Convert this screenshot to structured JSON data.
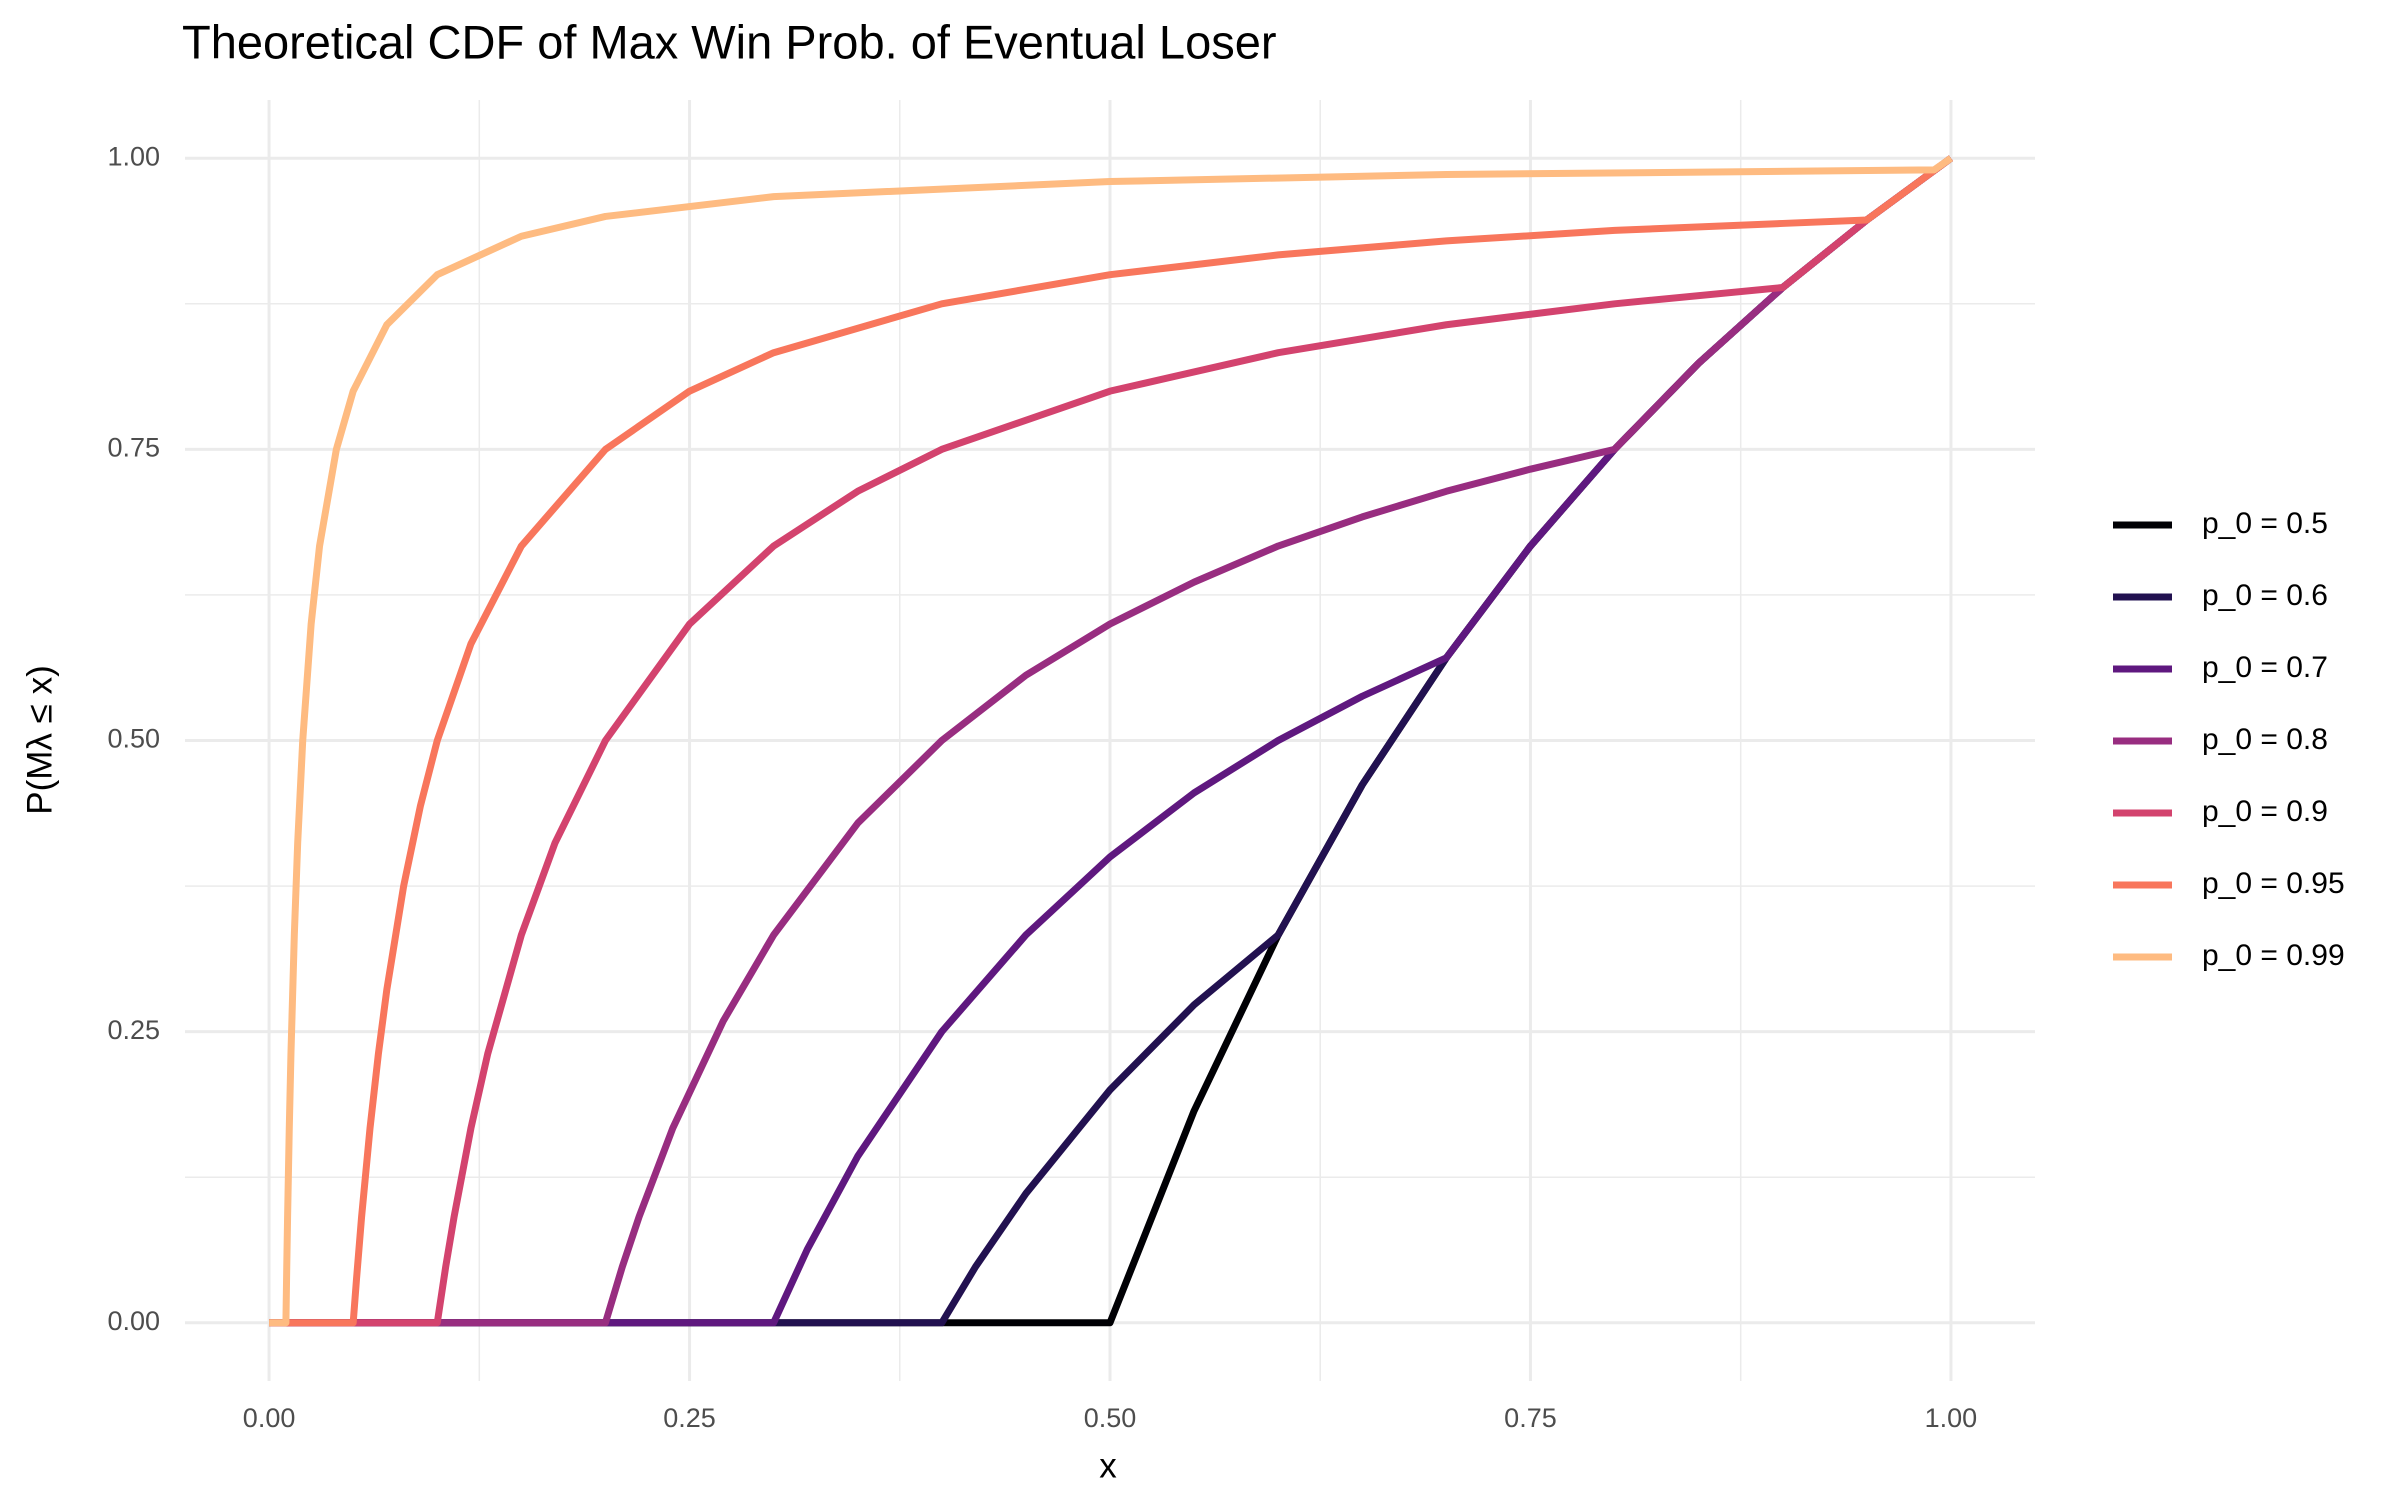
{
  "chart_data": {
    "type": "line",
    "title": "Theoretical CDF of Max Win Prob. of Eventual Loser",
    "x_label": "x",
    "y_label": "P(Mλ ≤ x)",
    "xlim": [
      -0.05,
      1.05
    ],
    "ylim": [
      -0.05,
      1.05
    ],
    "xticks": [
      {
        "value": 0,
        "label": "0.00"
      },
      {
        "value": 0.25,
        "label": "0.25"
      },
      {
        "value": 0.5,
        "label": "0.50"
      },
      {
        "value": 0.75,
        "label": "0.75"
      },
      {
        "value": 1,
        "label": "1.00"
      }
    ],
    "yticks": [
      {
        "value": 0,
        "label": "0.00"
      },
      {
        "value": 0.25,
        "label": "0.25"
      },
      {
        "value": 0.5,
        "label": "0.50"
      },
      {
        "value": 0.75,
        "label": "0.75"
      },
      {
        "value": 1,
        "label": "1.00"
      }
    ],
    "grid": true,
    "legend": "right",
    "series": [
      {
        "name": "p_0 = 0.5",
        "color": "#000004",
        "x": [
          0,
          0.5,
          0.55,
          0.6,
          0.65,
          0.7,
          0.75,
          0.8,
          0.85,
          0.9,
          0.95,
          1
        ],
        "values": [
          0,
          0,
          0.182,
          0.333,
          0.462,
          0.571,
          0.667,
          0.75,
          0.824,
          0.889,
          0.947,
          1
        ]
      },
      {
        "name": "p_0 = 0.6",
        "color": "#221150",
        "x": [
          0,
          0.4,
          0.42,
          0.45,
          0.5,
          0.55,
          0.6,
          0.65,
          0.7,
          0.75,
          0.8,
          0.85,
          0.9,
          0.95,
          1
        ],
        "values": [
          0,
          0,
          0.048,
          0.111,
          0.2,
          0.273,
          0.333,
          0.462,
          0.571,
          0.667,
          0.75,
          0.824,
          0.889,
          0.947,
          1
        ]
      },
      {
        "name": "p_0 = 0.7",
        "color": "#5f187f",
        "x": [
          0,
          0.3,
          0.32,
          0.35,
          0.4,
          0.45,
          0.5,
          0.55,
          0.6,
          0.65,
          0.7,
          0.75,
          0.8,
          0.85,
          0.9,
          0.95,
          1
        ],
        "values": [
          0,
          0,
          0.063,
          0.143,
          0.25,
          0.333,
          0.4,
          0.455,
          0.5,
          0.538,
          0.571,
          0.667,
          0.75,
          0.824,
          0.889,
          0.947,
          1
        ]
      },
      {
        "name": "p_0 = 0.8",
        "color": "#982d80",
        "x": [
          0,
          0.2,
          0.21,
          0.22,
          0.24,
          0.27,
          0.3,
          0.35,
          0.4,
          0.45,
          0.5,
          0.55,
          0.6,
          0.65,
          0.7,
          0.75,
          0.8,
          0.85,
          0.9,
          0.95,
          1
        ],
        "values": [
          0,
          0,
          0.048,
          0.091,
          0.167,
          0.259,
          0.333,
          0.429,
          0.5,
          0.556,
          0.6,
          0.636,
          0.667,
          0.692,
          0.714,
          0.733,
          0.75,
          0.824,
          0.889,
          0.947,
          1
        ]
      },
      {
        "name": "p_0 = 0.9",
        "color": "#d3436e",
        "x": [
          0,
          0.1,
          0.105,
          0.11,
          0.12,
          0.13,
          0.15,
          0.17,
          0.2,
          0.25,
          0.3,
          0.35,
          0.4,
          0.5,
          0.6,
          0.7,
          0.8,
          0.9,
          0.95,
          1
        ],
        "values": [
          0,
          0,
          0.048,
          0.091,
          0.167,
          0.231,
          0.333,
          0.412,
          0.5,
          0.6,
          0.667,
          0.714,
          0.75,
          0.8,
          0.833,
          0.857,
          0.875,
          0.889,
          0.947,
          1
        ]
      },
      {
        "name": "p_0 = 0.95",
        "color": "#f8765c",
        "x": [
          0,
          0.05,
          0.052,
          0.055,
          0.06,
          0.065,
          0.07,
          0.08,
          0.09,
          0.1,
          0.12,
          0.15,
          0.2,
          0.25,
          0.3,
          0.4,
          0.5,
          0.6,
          0.7,
          0.8,
          0.9,
          0.95,
          1
        ],
        "values": [
          0,
          0,
          0.038,
          0.091,
          0.167,
          0.231,
          0.286,
          0.375,
          0.444,
          0.5,
          0.583,
          0.667,
          0.75,
          0.8,
          0.833,
          0.875,
          0.9,
          0.917,
          0.929,
          0.938,
          0.944,
          0.947,
          1
        ]
      },
      {
        "name": "p_0 = 0.99",
        "color": "#febb81",
        "x": [
          0,
          0.01,
          0.0105,
          0.011,
          0.012,
          0.013,
          0.015,
          0.017,
          0.02,
          0.025,
          0.03,
          0.04,
          0.05,
          0.07,
          0.1,
          0.15,
          0.2,
          0.3,
          0.5,
          0.7,
          0.99,
          1
        ],
        "values": [
          0,
          0,
          0.048,
          0.091,
          0.167,
          0.231,
          0.333,
          0.412,
          0.5,
          0.6,
          0.667,
          0.75,
          0.8,
          0.857,
          0.9,
          0.933,
          0.95,
          0.967,
          0.98,
          0.986,
          0.99,
          1
        ]
      }
    ]
  }
}
